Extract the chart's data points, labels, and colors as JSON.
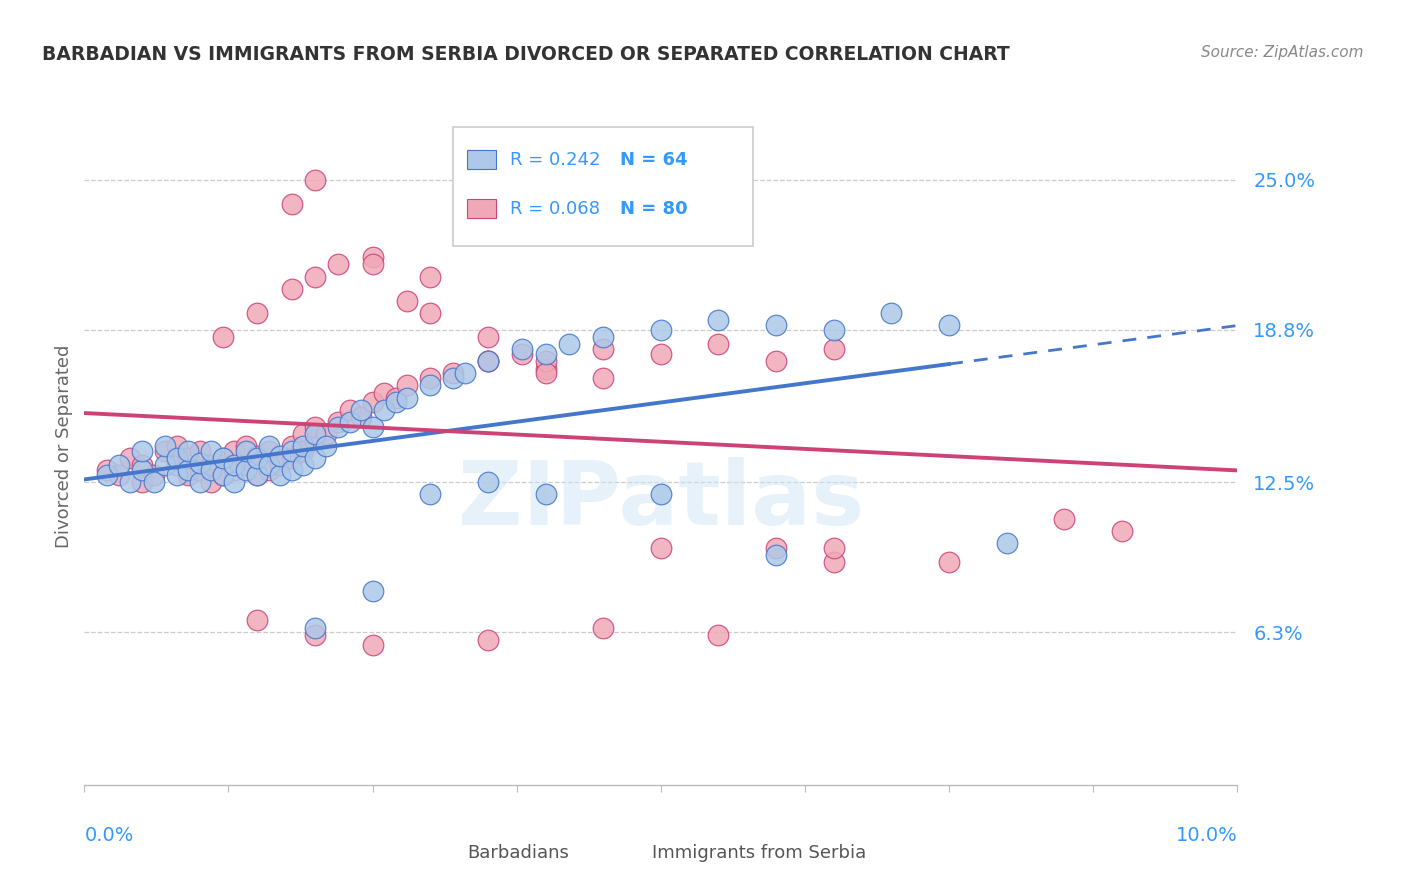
{
  "title": "BARBADIAN VS IMMIGRANTS FROM SERBIA DIVORCED OR SEPARATED CORRELATION CHART",
  "source": "Source: ZipAtlas.com",
  "ylabel": "Divorced or Separated",
  "ytick_labels": [
    "6.3%",
    "12.5%",
    "18.8%",
    "25.0%"
  ],
  "ytick_values": [
    0.063,
    0.125,
    0.188,
    0.25
  ],
  "xlim": [
    0.0,
    0.1
  ],
  "ylim": [
    0.0,
    0.28
  ],
  "watermark": "ZIPatlas",
  "legend_r1": "R = 0.242",
  "legend_n1": "N = 64",
  "legend_r2": "R = 0.068",
  "legend_n2": "N = 80",
  "blue_color": "#adc8e8",
  "pink_color": "#f0a8b8",
  "blue_line_color": "#4477cc",
  "pink_line_color": "#cc4477",
  "blue_scatter_x": [
    0.002,
    0.003,
    0.004,
    0.005,
    0.005,
    0.006,
    0.007,
    0.007,
    0.008,
    0.008,
    0.009,
    0.009,
    0.01,
    0.01,
    0.011,
    0.011,
    0.012,
    0.012,
    0.013,
    0.013,
    0.014,
    0.014,
    0.015,
    0.015,
    0.016,
    0.016,
    0.017,
    0.017,
    0.018,
    0.018,
    0.019,
    0.019,
    0.02,
    0.02,
    0.021,
    0.022,
    0.023,
    0.024,
    0.025,
    0.026,
    0.027,
    0.028,
    0.03,
    0.032,
    0.033,
    0.035,
    0.038,
    0.04,
    0.042,
    0.045,
    0.05,
    0.055,
    0.06,
    0.065,
    0.07,
    0.075,
    0.02,
    0.025,
    0.03,
    0.035,
    0.04,
    0.05,
    0.06,
    0.08
  ],
  "blue_scatter_y": [
    0.128,
    0.132,
    0.125,
    0.13,
    0.138,
    0.125,
    0.132,
    0.14,
    0.128,
    0.135,
    0.13,
    0.138,
    0.125,
    0.133,
    0.13,
    0.138,
    0.128,
    0.135,
    0.125,
    0.132,
    0.13,
    0.138,
    0.128,
    0.135,
    0.132,
    0.14,
    0.128,
    0.136,
    0.13,
    0.138,
    0.132,
    0.14,
    0.135,
    0.145,
    0.14,
    0.148,
    0.15,
    0.155,
    0.148,
    0.155,
    0.158,
    0.16,
    0.165,
    0.168,
    0.17,
    0.175,
    0.18,
    0.178,
    0.182,
    0.185,
    0.188,
    0.192,
    0.19,
    0.188,
    0.195,
    0.19,
    0.065,
    0.08,
    0.12,
    0.125,
    0.12,
    0.12,
    0.095,
    0.1
  ],
  "pink_scatter_x": [
    0.002,
    0.003,
    0.004,
    0.005,
    0.005,
    0.006,
    0.007,
    0.008,
    0.008,
    0.009,
    0.009,
    0.01,
    0.01,
    0.011,
    0.011,
    0.012,
    0.012,
    0.013,
    0.013,
    0.014,
    0.014,
    0.015,
    0.015,
    0.016,
    0.016,
    0.017,
    0.018,
    0.018,
    0.019,
    0.019,
    0.02,
    0.02,
    0.021,
    0.022,
    0.023,
    0.024,
    0.025,
    0.026,
    0.027,
    0.028,
    0.03,
    0.032,
    0.035,
    0.038,
    0.04,
    0.045,
    0.05,
    0.055,
    0.06,
    0.065,
    0.012,
    0.015,
    0.018,
    0.02,
    0.022,
    0.025,
    0.028,
    0.03,
    0.035,
    0.04,
    0.018,
    0.02,
    0.025,
    0.03,
    0.035,
    0.04,
    0.045,
    0.05,
    0.06,
    0.065,
    0.015,
    0.02,
    0.025,
    0.035,
    0.045,
    0.055,
    0.065,
    0.075,
    0.085,
    0.09
  ],
  "pink_scatter_y": [
    0.13,
    0.128,
    0.135,
    0.125,
    0.132,
    0.128,
    0.138,
    0.132,
    0.14,
    0.128,
    0.135,
    0.13,
    0.138,
    0.125,
    0.132,
    0.128,
    0.135,
    0.13,
    0.138,
    0.132,
    0.14,
    0.128,
    0.136,
    0.13,
    0.138,
    0.132,
    0.14,
    0.135,
    0.145,
    0.138,
    0.142,
    0.148,
    0.145,
    0.15,
    0.155,
    0.152,
    0.158,
    0.162,
    0.16,
    0.165,
    0.168,
    0.17,
    0.175,
    0.178,
    0.172,
    0.18,
    0.178,
    0.182,
    0.175,
    0.18,
    0.185,
    0.195,
    0.205,
    0.21,
    0.215,
    0.218,
    0.2,
    0.195,
    0.185,
    0.175,
    0.24,
    0.25,
    0.215,
    0.21,
    0.175,
    0.17,
    0.168,
    0.098,
    0.098,
    0.092,
    0.068,
    0.062,
    0.058,
    0.06,
    0.065,
    0.062,
    0.098,
    0.092,
    0.11,
    0.105
  ]
}
